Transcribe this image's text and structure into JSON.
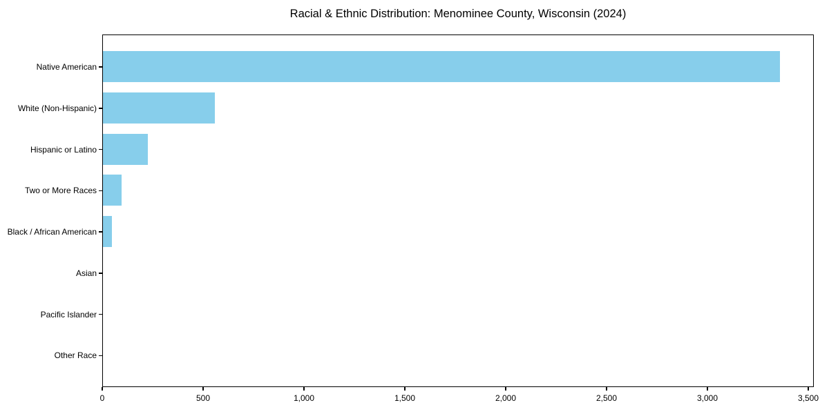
{
  "chart_data": {
    "type": "bar",
    "orientation": "horizontal",
    "title": "Racial & Ethnic Distribution: Menominee County, Wisconsin (2024)",
    "categories": [
      "Native American",
      "White (Non-Hispanic)",
      "Hispanic or Latino",
      "Two or More Races",
      "Black / African American",
      "Asian",
      "Pacific Islander",
      "Other Race"
    ],
    "values": [
      3356,
      555,
      221,
      92,
      43,
      0,
      0,
      0
    ],
    "bar_color": "#87CEEB",
    "xlabel": "",
    "ylabel": "",
    "xlim": [
      0,
      3525
    ],
    "x_tick_values": [
      0,
      500,
      1000,
      1500,
      2000,
      2500,
      3000,
      3500
    ],
    "x_tick_labels": [
      "0",
      "500",
      "1,000",
      "1,500",
      "2,000",
      "2,500",
      "3,000",
      "3,500"
    ],
    "grid": false,
    "legend": null,
    "frame": "full-box",
    "background_color": "#ffffff",
    "text_color": "#000000"
  }
}
